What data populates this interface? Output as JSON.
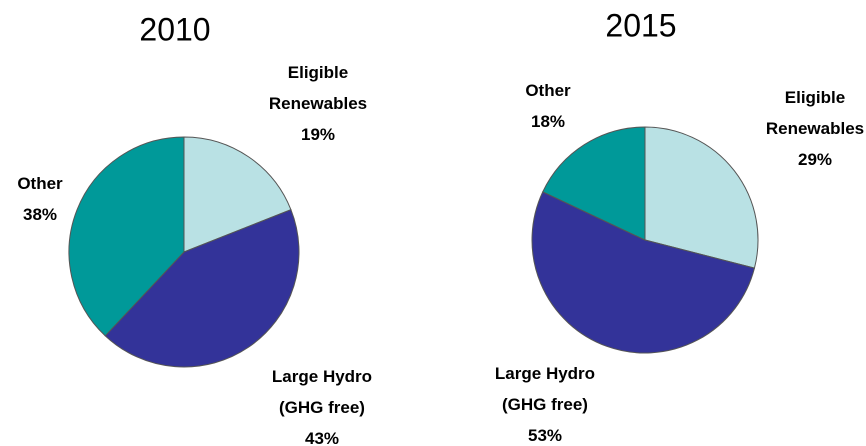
{
  "chart_data": [
    {
      "type": "pie",
      "title": "2010",
      "categories": [
        "Eligible Renewables",
        "Large Hydro (GHG free)",
        "Other"
      ],
      "values": [
        19,
        43,
        38
      ],
      "value_labels": [
        "19%",
        "43%",
        "38%"
      ],
      "colors": [
        "#b9e1e4",
        "#333399",
        "#009999"
      ]
    },
    {
      "type": "pie",
      "title": "2015",
      "categories": [
        "Eligible Renewables",
        "Large Hydro (GHG free)",
        "Other"
      ],
      "values": [
        29,
        53,
        18
      ],
      "value_labels": [
        "29%",
        "53%",
        "18%"
      ],
      "colors": [
        "#b9e1e4",
        "#333399",
        "#009999"
      ]
    }
  ]
}
